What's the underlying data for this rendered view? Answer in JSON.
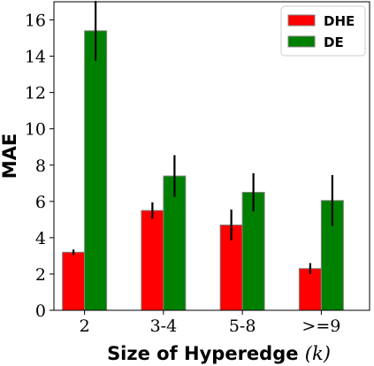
{
  "chart_data": {
    "type": "bar",
    "xlabel_main": "Size of Hyperedge",
    "xlabel_symbol": "(k)",
    "ylabel": "MAE",
    "categories": [
      "2",
      "3-4",
      "5-8",
      ">=9"
    ],
    "ylim": [
      0,
      17
    ],
    "yticks": [
      0,
      2,
      4,
      6,
      8,
      10,
      12,
      14,
      16
    ],
    "legend_position": "top-right",
    "grid": false,
    "series": [
      {
        "name": "DHE",
        "color": "#ff0000",
        "values": [
          3.2,
          5.5,
          4.7,
          2.3
        ],
        "errors": [
          0.15,
          0.45,
          0.85,
          0.3
        ]
      },
      {
        "name": "DE",
        "color": "#008000",
        "values": [
          15.4,
          7.4,
          6.5,
          6.05
        ],
        "errors": [
          1.65,
          1.15,
          1.05,
          1.4
        ]
      }
    ]
  }
}
